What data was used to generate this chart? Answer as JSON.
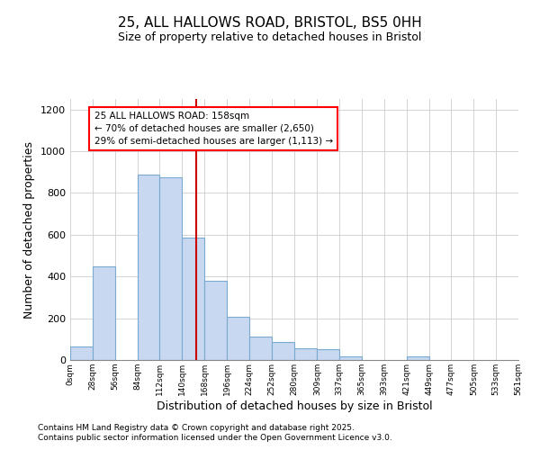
{
  "title1": "25, ALL HALLOWS ROAD, BRISTOL, BS5 0HH",
  "title2": "Size of property relative to detached houses in Bristol",
  "xlabel": "Distribution of detached houses by size in Bristol",
  "ylabel": "Number of detached properties",
  "bar_color": "#c8d8f0",
  "bar_edge_color": "#7aaad0",
  "vline_x": 158,
  "vline_color": "#cc0000",
  "annotation_title": "25 ALL HALLOWS ROAD: 158sqm",
  "annotation_line1": "← 70% of detached houses are smaller (2,650)",
  "annotation_line2": "29% of semi-detached houses are larger (1,113) →",
  "bins": [
    0,
    28,
    56,
    84,
    112,
    140,
    168,
    196,
    224,
    252,
    280,
    309,
    337,
    365,
    393,
    421,
    449,
    477,
    505,
    533,
    561
  ],
  "counts": [
    65,
    450,
    0,
    890,
    875,
    585,
    380,
    205,
    110,
    85,
    55,
    50,
    18,
    0,
    0,
    18,
    0,
    0,
    0,
    0
  ],
  "ylim": [
    0,
    1250
  ],
  "yticks": [
    0,
    200,
    400,
    600,
    800,
    1000,
    1200
  ],
  "plot_bg": "#ffffff",
  "fig_bg": "#ffffff",
  "footer1": "Contains HM Land Registry data © Crown copyright and database right 2025.",
  "footer2": "Contains public sector information licensed under the Open Government Licence v3.0."
}
